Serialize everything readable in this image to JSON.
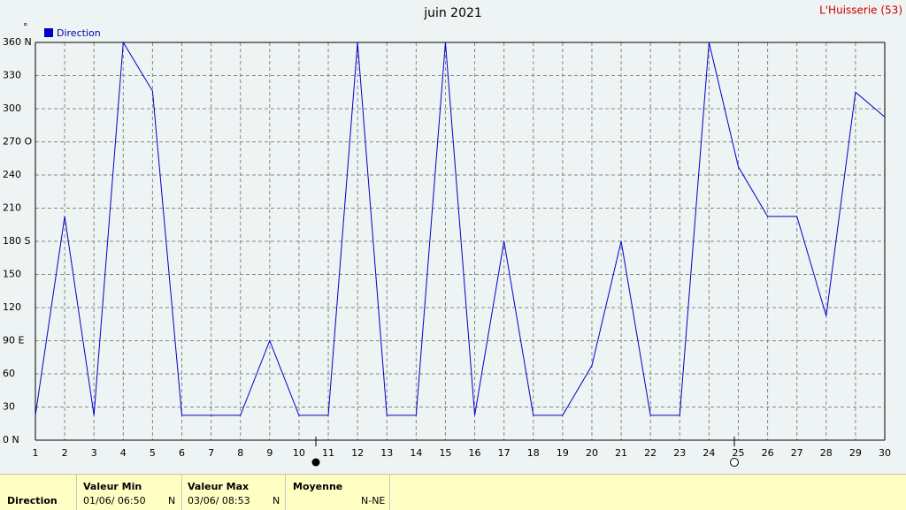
{
  "chart_data": {
    "type": "line",
    "title": "juin 2021",
    "station": "L'Huisserie (53)",
    "y_unit": "°",
    "x": [
      1,
      2,
      3,
      4,
      5,
      6,
      7,
      8,
      9,
      10,
      11,
      12,
      13,
      14,
      15,
      16,
      17,
      18,
      19,
      20,
      21,
      22,
      23,
      24,
      25,
      26,
      27,
      28,
      29,
      30
    ],
    "series": [
      {
        "name": "Direction",
        "color": "#0000cc",
        "values": [
          22.5,
          202.5,
          22.5,
          360,
          316,
          22.5,
          22.5,
          22.5,
          90,
          22.5,
          22.5,
          360,
          22.5,
          22.5,
          360,
          22.5,
          180,
          22.5,
          22.5,
          67.5,
          180,
          22.5,
          22.5,
          360,
          247.5,
          202.5,
          202.5,
          112.5,
          315,
          292.5
        ]
      }
    ],
    "xlim": [
      1,
      30
    ],
    "xticks": [
      1,
      2,
      3,
      4,
      5,
      6,
      7,
      8,
      9,
      10,
      11,
      12,
      13,
      14,
      15,
      16,
      17,
      18,
      19,
      20,
      21,
      22,
      23,
      24,
      25,
      26,
      27,
      28,
      29,
      30
    ],
    "ylim": [
      0,
      360
    ],
    "yticks": [
      {
        "value": 0,
        "label": "0   N"
      },
      30,
      60,
      {
        "value": 90,
        "label": "90  E"
      },
      120,
      150,
      {
        "value": 180,
        "label": "180 S"
      },
      210,
      240,
      {
        "value": 270,
        "label": "270 O"
      },
      300,
      330,
      {
        "value": 360,
        "label": "360 N"
      }
    ],
    "grid": true
  },
  "summary": {
    "row_label": "Direction",
    "min": {
      "header": "Valeur Min",
      "date": "01/06/  06:50",
      "value": "N"
    },
    "max": {
      "header": "Valeur Max",
      "date": "03/06/  08:53",
      "value": "N"
    },
    "mean": {
      "header": "Moyenne",
      "value": "N-NE"
    }
  }
}
